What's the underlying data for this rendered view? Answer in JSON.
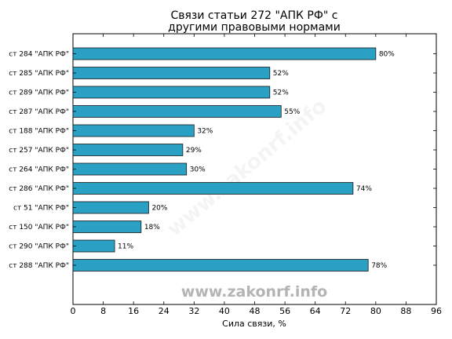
{
  "chart_data": {
    "type": "bar",
    "orientation": "horizontal",
    "title_lines": [
      "Связи статьи 272 \"АПК РФ\" с",
      "другими правовыми нормами"
    ],
    "xlabel": "Сила связи, %",
    "ylabel": "",
    "xlim": [
      0,
      96
    ],
    "xticks": [
      0,
      8,
      16,
      24,
      32,
      40,
      48,
      56,
      64,
      72,
      80,
      88,
      96
    ],
    "categories": [
      "ст 284 \"АПК РФ\"",
      "ст 285 \"АПК РФ\"",
      "ст 289 \"АПК РФ\"",
      "ст 287 \"АПК РФ\"",
      "ст 188 \"АПК РФ\"",
      "ст 257 \"АПК РФ\"",
      "ст 264 \"АПК РФ\"",
      "ст 286 \"АПК РФ\"",
      "ст 51 \"АПК РФ\"",
      "ст 150 \"АПК РФ\"",
      "ст 290 \"АПК РФ\"",
      "ст 288 \"АПК РФ\""
    ],
    "values": [
      80,
      52,
      52,
      55,
      32,
      29,
      30,
      74,
      20,
      18,
      11,
      78
    ],
    "value_labels": [
      "80%",
      "52%",
      "52%",
      "55%",
      "32%",
      "29%",
      "30%",
      "74%",
      "20%",
      "18%",
      "11%",
      "78%"
    ],
    "bar_color": "#2aa0c4",
    "grid": false
  },
  "watermark": {
    "text": "www.zakonrf.info",
    "color": "#b4b4b4"
  }
}
